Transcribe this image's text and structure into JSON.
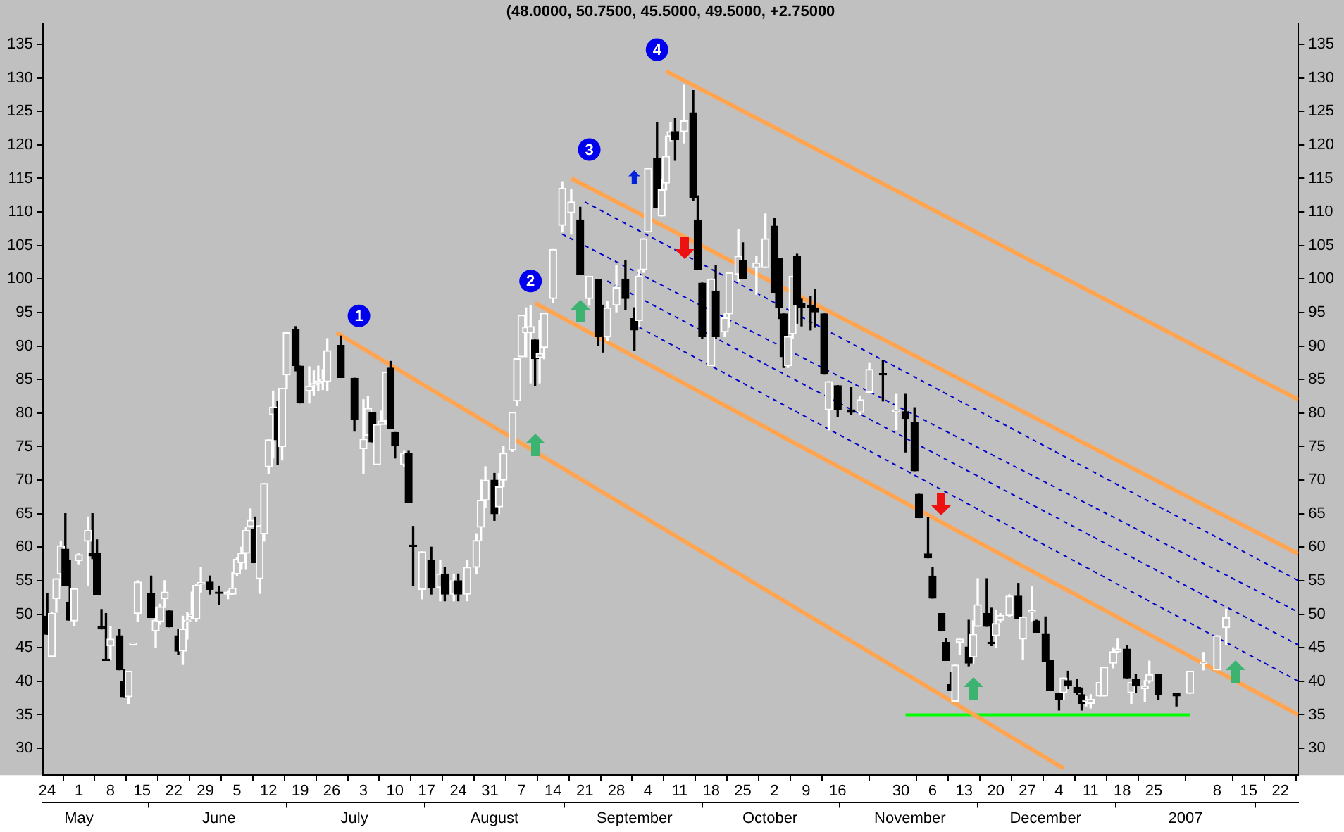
{
  "chart_data": {
    "type": "candlestick",
    "title": "(48.0000, 50.7500, 45.5000, 49.5000, +2.75000",
    "x": [
      "2006-04-24",
      "2006-04-25",
      "2006-04-26",
      "2006-04-27",
      "2006-04-28",
      "2006-04-29",
      "2006-04-30",
      "2006-05-01",
      "2006-05-03",
      "2006-05-04",
      "2006-05-05",
      "2006-05-06",
      "2006-05-07",
      "2006-05-08",
      "2006-05-10",
      "2006-05-11",
      "2006-05-12",
      "2006-05-13",
      "2006-05-14",
      "2006-05-17",
      "2006-05-18",
      "2006-05-19",
      "2006-05-20",
      "2006-05-21",
      "2006-05-23",
      "2006-05-24",
      "2006-05-25",
      "2006-05-26",
      "2006-05-27",
      "2006-05-28",
      "2006-05-30",
      "2006-06-01",
      "2006-06-03",
      "2006-06-04",
      "2006-06-05",
      "2006-06-06",
      "2006-06-07",
      "2006-06-08",
      "2006-06-09",
      "2006-06-10",
      "2006-06-11",
      "2006-06-12",
      "2006-06-13",
      "2006-06-14",
      "2006-06-15",
      "2006-06-16",
      "2006-06-18",
      "2006-06-19",
      "2006-06-21",
      "2006-06-22",
      "2006-06-23",
      "2006-06-24",
      "2006-06-25",
      "2006-06-28",
      "2006-07-01",
      "2006-07-03",
      "2006-07-04",
      "2006-07-05",
      "2006-07-06",
      "2006-07-07",
      "2006-07-08",
      "2006-07-09",
      "2006-07-10",
      "2006-07-12",
      "2006-07-13",
      "2006-07-14",
      "2006-07-16",
      "2006-07-18",
      "2006-07-20",
      "2006-07-21",
      "2006-07-23",
      "2006-07-24",
      "2006-07-26",
      "2006-07-28",
      "2006-07-29",
      "2006-07-30",
      "2006-08-01",
      "2006-08-02",
      "2006-08-03",
      "2006-08-05",
      "2006-08-06",
      "2006-08-07",
      "2006-08-08",
      "2006-08-09",
      "2006-08-10",
      "2006-08-11",
      "2006-08-12",
      "2006-08-14",
      "2006-08-16",
      "2006-08-18",
      "2006-08-20",
      "2006-08-22",
      "2006-08-24",
      "2006-08-25",
      "2006-08-26",
      "2006-08-28",
      "2006-08-30",
      "2006-09-01",
      "2006-09-02",
      "2006-09-03",
      "2006-09-04",
      "2006-09-06",
      "2006-09-07",
      "2006-09-08",
      "2006-09-09",
      "2006-09-10",
      "2006-09-12",
      "2006-09-14",
      "2006-09-15",
      "2006-09-16",
      "2006-09-18",
      "2006-09-19",
      "2006-09-21",
      "2006-09-22",
      "2006-09-24",
      "2006-09-25",
      "2006-09-28",
      "2006-09-30",
      "2006-10-02",
      "2006-10-03",
      "2006-10-04",
      "2006-10-05",
      "2006-10-06",
      "2006-10-07",
      "2006-10-08",
      "2006-10-10",
      "2006-10-11",
      "2006-10-13",
      "2006-10-14",
      "2006-10-16",
      "2006-10-19",
      "2006-10-21",
      "2006-10-23",
      "2006-10-26",
      "2006-10-29",
      "2006-10-31",
      "2006-11-02",
      "2006-11-03",
      "2006-11-05",
      "2006-11-06",
      "2006-11-08",
      "2006-11-09",
      "2006-11-10",
      "2006-11-11",
      "2006-11-12",
      "2006-11-14",
      "2006-11-15",
      "2006-11-16",
      "2006-11-18",
      "2006-11-19",
      "2006-11-20",
      "2006-11-21",
      "2006-11-23",
      "2006-11-25",
      "2006-11-26",
      "2006-11-28",
      "2006-11-29",
      "2006-12-01",
      "2006-12-02",
      "2006-12-04",
      "2006-12-05",
      "2006-12-06",
      "2006-12-08",
      "2006-12-09",
      "2006-12-10",
      "2006-12-11",
      "2006-12-13",
      "2006-12-14",
      "2006-12-16",
      "2006-12-17",
      "2006-12-19",
      "2006-12-20",
      "2006-12-21",
      "2006-12-23",
      "2006-12-24",
      "2006-12-26",
      "2006-12-30",
      "2007-01-02",
      "2007-01-05",
      "2007-01-08",
      "2007-01-10"
    ],
    "ohlc": [
      [
        49.7,
        53.1,
        47,
        47
      ],
      [
        43.7,
        50.2,
        43.7,
        50.1
      ],
      [
        52.3,
        55.3,
        50.3,
        55.3
      ],
      [
        56,
        60.8,
        54.3,
        60.2
      ],
      [
        59.7,
        65,
        54.3,
        54.3
      ],
      [
        51.8,
        58,
        49.1,
        49.1
      ],
      [
        49,
        53.8,
        48.3,
        53.8
      ],
      [
        58,
        59,
        57.5,
        58.9
      ],
      [
        60.9,
        64.5,
        54.3,
        62.5
      ],
      [
        59.1,
        65,
        58.3,
        58.7
      ],
      [
        59.1,
        61.1,
        52.9,
        52.9
      ],
      [
        48.1,
        50.7,
        47.8,
        47.8
      ],
      [
        43.2,
        50.1,
        43.1,
        43.1
      ],
      [
        45.3,
        48.1,
        43.3,
        46.3
      ],
      [
        46.8,
        47.7,
        41.7,
        41.7
      ],
      [
        40,
        41.7,
        37.7,
        37.7
      ],
      [
        37.7,
        41.5,
        36.7,
        41.5
      ],
      [
        45.5,
        45.6,
        45.4,
        45.5
      ],
      [
        50.1,
        55,
        48.9,
        54.8
      ],
      [
        53.1,
        55.7,
        49.5,
        49.5
      ],
      [
        47.5,
        51,
        45,
        49.1
      ],
      [
        48.9,
        51.5,
        48.5,
        51.1
      ],
      [
        52.3,
        55,
        51,
        53.3
      ],
      [
        50.5,
        50.5,
        48.1,
        48.1
      ],
      [
        46.8,
        47.7,
        44,
        44.5
      ],
      [
        44.5,
        49.7,
        42.5,
        47.8
      ],
      [
        48.9,
        50.3,
        46.3,
        49
      ],
      [
        49.7,
        53.3,
        49.3,
        49.8
      ],
      [
        49.3,
        54.5,
        49,
        54.3
      ],
      [
        54.5,
        57,
        53.3,
        54.7
      ],
      [
        54.8,
        55.7,
        53,
        53.7
      ],
      [
        53.2,
        54.2,
        51.5,
        53.1
      ],
      [
        53,
        53.5,
        52.3,
        53.3
      ],
      [
        53,
        56.3,
        53,
        53.9
      ],
      [
        56,
        58.5,
        55.7,
        58.2
      ],
      [
        57.7,
        60,
        56.7,
        59.1
      ],
      [
        59.1,
        63,
        56.7,
        62.5
      ],
      [
        63.1,
        65.7,
        63,
        64
      ],
      [
        62.7,
        64.5,
        57.7,
        57.7
      ],
      [
        55.3,
        63.2,
        53.1,
        63.2
      ],
      [
        62,
        69.5,
        60.9,
        69.5
      ],
      [
        72,
        76,
        71,
        76
      ],
      [
        79.8,
        83.3,
        73.3,
        80.9
      ],
      [
        80.7,
        81.8,
        72.3,
        76
      ],
      [
        75,
        83.7,
        73,
        83.7
      ],
      [
        85.7,
        92,
        83.7,
        92
      ],
      [
        92.5,
        92.9,
        86.3,
        87.1
      ],
      [
        87,
        87,
        81.5,
        81.5
      ],
      [
        83.3,
        86.9,
        81.5,
        84
      ],
      [
        84.2,
        86.3,
        82.7,
        84.4
      ],
      [
        84.5,
        87,
        83.3,
        84.8
      ],
      [
        84.8,
        86.5,
        83.5,
        85
      ],
      [
        84.7,
        91.1,
        83.3,
        89.3
      ],
      [
        90.1,
        91.5,
        85.3,
        85.3
      ],
      [
        85.2,
        85.2,
        77.3,
        79
      ],
      [
        74.7,
        82,
        71,
        76.1
      ],
      [
        76.7,
        82.5,
        76.7,
        80.7
      ],
      [
        80.1,
        80.1,
        75.7,
        75.7
      ],
      [
        72.3,
        78.3,
        72.3,
        78.3
      ],
      [
        78.3,
        80.3,
        78.3,
        78.8
      ],
      [
        78.8,
        86.1,
        78.3,
        86.1
      ],
      [
        86.7,
        87.7,
        77.7,
        77.7
      ],
      [
        77.1,
        77.1,
        73.3,
        75.1
      ],
      [
        72.3,
        74.3,
        72,
        74
      ],
      [
        74,
        74.3,
        66.7,
        66.7
      ],
      [
        60.2,
        63.1,
        54.3,
        60.1
      ],
      [
        53.7,
        59.3,
        52.3,
        59.3
      ],
      [
        58,
        60,
        53,
        54
      ],
      [
        54,
        58,
        52,
        56
      ],
      [
        56,
        57,
        52,
        53
      ],
      [
        53,
        56,
        52,
        55
      ],
      [
        55,
        56,
        52,
        53
      ],
      [
        53,
        58,
        52,
        57
      ],
      [
        57,
        62,
        56,
        61
      ],
      [
        63,
        70,
        61,
        67
      ],
      [
        67,
        72,
        66,
        70
      ],
      [
        70,
        71,
        64,
        65
      ],
      [
        66,
        71,
        65,
        69
      ],
      [
        70,
        75,
        69,
        74
      ],
      [
        74.5,
        80.1,
        74.3,
        80.1
      ],
      [
        81.8,
        88.1,
        81.1,
        88.1
      ],
      [
        88.4,
        94.6,
        88.4,
        94.6
      ],
      [
        92,
        95.7,
        88.4,
        92.8
      ],
      [
        92,
        96,
        84.5,
        92.9
      ],
      [
        90.9,
        90.9,
        84.1,
        88.1
      ],
      [
        88.3,
        93.8,
        84.5,
        88.9
      ],
      [
        89.8,
        94.9,
        88.1,
        94.9
      ],
      [
        97.1,
        104.4,
        96.5,
        104.4
      ],
      [
        108,
        114.5,
        107,
        113.5
      ],
      [
        109.9,
        113.3,
        106.7,
        111.5
      ],
      [
        108.8,
        110.7,
        100.7,
        100.7
      ],
      [
        97.1,
        100.4,
        96.1,
        100.4
      ],
      [
        99.9,
        99.9,
        90.1,
        91.4
      ],
      [
        92.8,
        96.1,
        89.1,
        91.4
      ],
      [
        91.4,
        96.7,
        90.8,
        95.7
      ],
      [
        96.1,
        102,
        95.1,
        98.7
      ],
      [
        100,
        102.7,
        95.4,
        97.1
      ],
      [
        94.1,
        95.7,
        89.4,
        92.4
      ],
      [
        93.8,
        101.4,
        92.8,
        100.4
      ],
      [
        101.4,
        106,
        101,
        106
      ],
      [
        107,
        116.5,
        107,
        116.5
      ],
      [
        118,
        123.3,
        110.7,
        110.7
      ],
      [
        109.4,
        114.8,
        109.4,
        113.3
      ],
      [
        114.3,
        121.3,
        113.3,
        118.3
      ],
      [
        121.3,
        123.3,
        120.5,
        122
      ],
      [
        122,
        124,
        117.7,
        120.8
      ],
      [
        122,
        128.9,
        120.3,
        123.6
      ],
      [
        124.8,
        128.1,
        111.7,
        112.1
      ],
      [
        108.8,
        112.4,
        101.4,
        101.4
      ],
      [
        99.4,
        99.4,
        91.1,
        91.4
      ],
      [
        87.1,
        100,
        87.1,
        100
      ],
      [
        98.2,
        102,
        91.1,
        91.4
      ],
      [
        92.1,
        94.8,
        91.4,
        94.2
      ],
      [
        94.8,
        100.9,
        92.8,
        100.9
      ],
      [
        100.7,
        107.4,
        99.7,
        103.4
      ],
      [
        102.7,
        105.4,
        100,
        100
      ],
      [
        101.7,
        103.4,
        97.7,
        102.4
      ],
      [
        101.7,
        109.7,
        101.7,
        106
      ],
      [
        107.9,
        109,
        98,
        98
      ],
      [
        103.1,
        103.1,
        94.1,
        95.7
      ],
      [
        94.8,
        94.8,
        86.8,
        88.4
      ],
      [
        87.1,
        91.4,
        86.8,
        91.4
      ],
      [
        91.8,
        100.4,
        91.1,
        100.4
      ],
      [
        103.4,
        103.7,
        93.4,
        96.1
      ],
      [
        96.4,
        97,
        93,
        95.7
      ],
      [
        96.1,
        97.4,
        92.4,
        95.7
      ],
      [
        95.7,
        98.4,
        92.8,
        95.1
      ],
      [
        94.8,
        94.8,
        85.8,
        85.8
      ],
      [
        80.5,
        84.7,
        77.5,
        84.7
      ],
      [
        84.1,
        84.1,
        79.5,
        80.5
      ],
      [
        80.5,
        83.8,
        79.8,
        80.1
      ],
      [
        80.1,
        82.5,
        79.8,
        82
      ],
      [
        83.1,
        87.5,
        83.1,
        86.5
      ],
      [
        85.9,
        87.8,
        81.8,
        85.7
      ],
      [
        80.2,
        82.8,
        77.5,
        80.5
      ],
      [
        80.2,
        82.8,
        74.2,
        79.2
      ],
      [
        78.6,
        80.8,
        71.4,
        71.4
      ],
      [
        67.9,
        67.9,
        64.4,
        64.4
      ],
      [
        59,
        64.4,
        58.4,
        58.4
      ],
      [
        55.7,
        57,
        52.4,
        52.4
      ],
      [
        50.1,
        50.1,
        47.5,
        47.5
      ],
      [
        45.8,
        46.4,
        43.1,
        43.1
      ],
      [
        39.5,
        41.3,
        38.7,
        38.7
      ],
      [
        37,
        42.4,
        37,
        42.4
      ],
      [
        45.8,
        46.3,
        44,
        46.3
      ],
      [
        45.1,
        49.1,
        42.3,
        42.7
      ],
      [
        43.6,
        49,
        42.7,
        47
      ],
      [
        48.2,
        55.3,
        48.2,
        51.4
      ],
      [
        50.1,
        55.3,
        48.2,
        48.2
      ],
      [
        45.7,
        50.9,
        45.3,
        45.6
      ],
      [
        46.8,
        50.6,
        45,
        48.6
      ],
      [
        49.1,
        50.1,
        48.8,
        49.8
      ],
      [
        49.8,
        52.9,
        49.6,
        52.7
      ],
      [
        52.7,
        54.6,
        49.3,
        49.3
      ],
      [
        46.3,
        49.6,
        43.3,
        49.6
      ],
      [
        50.3,
        54.1,
        49,
        50.4
      ],
      [
        49,
        49.1,
        47.3,
        47.3
      ],
      [
        47.1,
        49.6,
        43,
        43
      ],
      [
        43.1,
        43.1,
        38.7,
        38.7
      ],
      [
        38.2,
        38.2,
        35.7,
        37.3
      ],
      [
        38.3,
        40.5,
        37.3,
        40.5
      ],
      [
        40.1,
        41.5,
        38.9,
        39.3
      ],
      [
        39.1,
        40.3,
        38,
        38.3
      ],
      [
        38,
        39,
        35.7,
        36.7
      ],
      [
        37,
        37.7,
        36.3,
        37.1
      ],
      [
        36.7,
        38,
        36,
        37.3
      ],
      [
        37.8,
        39.8,
        37.8,
        39.8
      ],
      [
        37.8,
        42.1,
        37.8,
        42.1
      ],
      [
        42.7,
        45,
        42,
        44.4
      ],
      [
        44.4,
        46.3,
        44.3,
        44.8
      ],
      [
        44.8,
        45.3,
        40.5,
        40.5
      ],
      [
        38.3,
        39.8,
        36.7,
        39.8
      ],
      [
        40.3,
        41,
        38.3,
        39.3
      ],
      [
        38.9,
        40.1,
        37,
        39.3
      ],
      [
        40,
        43,
        39.7,
        41
      ],
      [
        41,
        41,
        37.3,
        38
      ],
      [
        38.2,
        38.2,
        36.3,
        37.8
      ],
      [
        38.2,
        41.5,
        38.2,
        41.5
      ],
      [
        42.6,
        44.3,
        41.7,
        42.9
      ],
      [
        41.7,
        46.8,
        41.7,
        46.8
      ],
      [
        48,
        50.75,
        45.5,
        49.5
      ]
    ],
    "series": [
      {
        "type": "line",
        "x": [
          "2006-06-27",
          "2006-12-05"
        ],
        "values": [
          92,
          27
        ],
        "color": "#ffa552"
      },
      {
        "type": "line",
        "x": [
          "2006-08-10",
          "2007-01-26"
        ],
        "values": [
          96.4,
          35
        ],
        "color": "#ffa552"
      },
      {
        "type": "line",
        "x": [
          "2006-08-18",
          "2007-01-26"
        ],
        "values": [
          115,
          59
        ],
        "color": "#ffa552"
      },
      {
        "type": "line",
        "x": [
          "2006-09-08",
          "2007-01-26"
        ],
        "values": [
          131,
          82
        ],
        "color": "#ffa552"
      },
      {
        "type": "line",
        "x": [
          "2006-08-21",
          "2007-01-26"
        ],
        "values": [
          111.5,
          55
        ],
        "color": "#0000cc",
        "line_style": "dashed"
      },
      {
        "type": "line",
        "x": [
          "2006-08-16",
          "2007-01-26"
        ],
        "values": [
          106.7,
          50.3
        ],
        "color": "#0000cc",
        "line_style": "dashed"
      },
      {
        "type": "line",
        "x": [
          "2006-08-26",
          "2007-01-26"
        ],
        "values": [
          99.7,
          45.4
        ],
        "color": "#0000cc",
        "line_style": "dashed"
      },
      {
        "type": "line",
        "x": [
          "2006-09-02",
          "2007-01-26"
        ],
        "values": [
          92.8,
          40
        ],
        "color": "#0000cc",
        "line_style": "dashed"
      },
      {
        "type": "line",
        "x": [
          "2006-10-31",
          "2007-01-02"
        ],
        "values": [
          35,
          35
        ],
        "color": "#00ff00"
      }
    ],
    "annotations": [
      {
        "text": "1",
        "x": "2006-07-02",
        "y": 94.5
      },
      {
        "text": "2",
        "x": "2006-08-09",
        "y": 99.7
      },
      {
        "text": "3",
        "x": "2006-08-22",
        "y": 119.3
      },
      {
        "text": "4",
        "x": "2006-09-06",
        "y": 134.2
      }
    ],
    "xlim": [
      "2006-04-23",
      "2007-01-26"
    ],
    "xticks": [
      {
        "value": "2006-04-24",
        "label": "24"
      },
      {
        "value": "2006-05-01",
        "label": "1"
      },
      {
        "value": "2006-05-08",
        "label": "8"
      },
      {
        "value": "2006-05-15",
        "label": "15"
      },
      {
        "value": "2006-05-22",
        "label": "22"
      },
      {
        "value": "2006-05-29",
        "label": "29"
      },
      {
        "value": "2006-06-05",
        "label": "5"
      },
      {
        "value": "2006-06-12",
        "label": "12"
      },
      {
        "value": "2006-06-19",
        "label": "19"
      },
      {
        "value": "2006-06-26",
        "label": "26"
      },
      {
        "value": "2006-07-03",
        "label": "3"
      },
      {
        "value": "2006-07-10",
        "label": "10"
      },
      {
        "value": "2006-07-17",
        "label": "17"
      },
      {
        "value": "2006-07-24",
        "label": "24"
      },
      {
        "value": "2006-07-31",
        "label": "31"
      },
      {
        "value": "2006-08-07",
        "label": "7"
      },
      {
        "value": "2006-08-14",
        "label": "14"
      },
      {
        "value": "2006-08-21",
        "label": "21"
      },
      {
        "value": "2006-08-28",
        "label": "28"
      },
      {
        "value": "2006-09-04",
        "label": "4"
      },
      {
        "value": "2006-09-11",
        "label": "11"
      },
      {
        "value": "2006-09-18",
        "label": "18"
      },
      {
        "value": "2006-09-25",
        "label": "25"
      },
      {
        "value": "2006-10-02",
        "label": "2"
      },
      {
        "value": "2006-10-09",
        "label": "9"
      },
      {
        "value": "2006-10-16",
        "label": "16"
      },
      {
        "value": "2006-10-30",
        "label": "30"
      },
      {
        "value": "2006-11-06",
        "label": "6"
      },
      {
        "value": "2006-11-13",
        "label": "13"
      },
      {
        "value": "2006-11-20",
        "label": "20"
      },
      {
        "value": "2006-11-27",
        "label": "27"
      },
      {
        "value": "2006-12-04",
        "label": "4"
      },
      {
        "value": "2006-12-11",
        "label": "11"
      },
      {
        "value": "2006-12-18",
        "label": "18"
      },
      {
        "value": "2006-12-25",
        "label": "25"
      },
      {
        "value": "2007-01-08",
        "label": "8"
      },
      {
        "value": "2007-01-15",
        "label": "15"
      },
      {
        "value": "2007-01-22",
        "label": "22"
      }
    ],
    "x2lim": [
      "2006-04-23",
      "2007-01-26"
    ],
    "x2ticks": [
      {
        "value": "2006-05-01",
        "label": "May"
      },
      {
        "value": "2006-06-01",
        "label": "June"
      },
      {
        "value": "2006-07-01",
        "label": "July"
      },
      {
        "value": "2006-08-01",
        "label": "August"
      },
      {
        "value": "2006-09-01",
        "label": "September"
      },
      {
        "value": "2006-10-01",
        "label": "October"
      },
      {
        "value": "2006-11-01",
        "label": "November"
      },
      {
        "value": "2006-12-01",
        "label": "December"
      },
      {
        "value": "2007-01-01",
        "label": "2007"
      }
    ],
    "ylim": [
      26,
      138
    ],
    "yticks": [
      30,
      35,
      40,
      45,
      50,
      55,
      60,
      65,
      70,
      75,
      80,
      85,
      90,
      95,
      100,
      105,
      110,
      115,
      120,
      125,
      130,
      135
    ],
    "y2lim": [
      26,
      138
    ],
    "y2ticks": [
      30,
      35,
      40,
      45,
      50,
      55,
      60,
      65,
      70,
      75,
      80,
      85,
      90,
      95,
      100,
      105,
      110,
      115,
      120,
      125,
      130,
      135
    ]
  }
}
